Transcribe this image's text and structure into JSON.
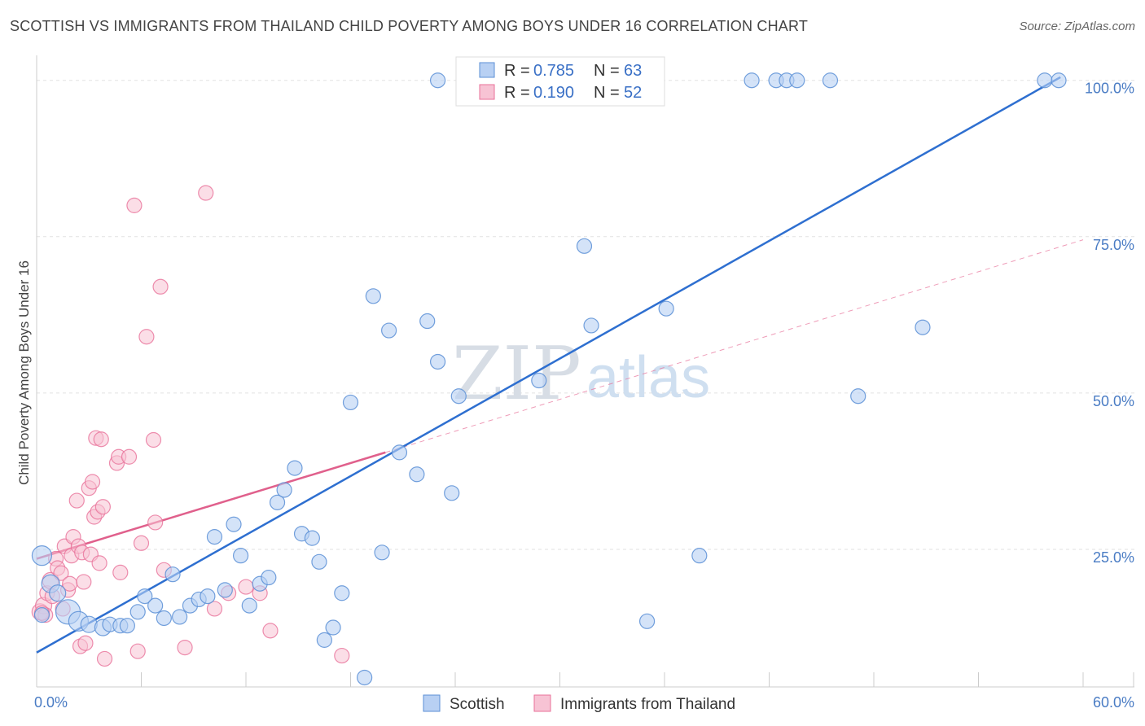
{
  "title": "SCOTTISH VS IMMIGRANTS FROM THAILAND CHILD POVERTY AMONG BOYS UNDER 16 CORRELATION CHART",
  "source": "Source: ZipAtlas.com",
  "colors": {
    "scottish": "#5b8fd6",
    "scottish_fill": "#b8d0f3",
    "thailand": "#e8729a",
    "thailand_fill": "#f7c3d4",
    "tick_text": "#4a7cc4",
    "grid": "#e2e2e2"
  },
  "chart_data": {
    "type": "scatter",
    "xlabel": "",
    "ylabel": "Child Poverty Among Boys Under 16",
    "xlim": [
      0,
      60
    ],
    "ylim": [
      3,
      104
    ],
    "x_tick_labels": [
      "0.0%",
      "60.0%"
    ],
    "y_ticks": [
      25,
      50,
      75,
      100
    ],
    "y_tick_labels": [
      "25.0%",
      "50.0%",
      "75.0%",
      "100.0%"
    ],
    "legend": {
      "position": "top-center",
      "rows": [
        {
          "r_label": "R =",
          "r": "0.785",
          "n_label": "N =",
          "n": "63"
        },
        {
          "r_label": "R =",
          "r": "0.190",
          "n_label": "N =",
          "n": "52"
        }
      ]
    },
    "series": [
      {
        "name": "Scottish",
        "trend": {
          "x": [
            0,
            58.7
          ],
          "y": [
            8.5,
            100.5
          ]
        },
        "points": [
          [
            0.3,
            24,
            12
          ],
          [
            0.8,
            19.5,
            11
          ],
          [
            1.2,
            18,
            10
          ],
          [
            1.8,
            15,
            15
          ],
          [
            2.4,
            13.5,
            12
          ],
          [
            3.0,
            13,
            10
          ],
          [
            3.8,
            12.5,
            10
          ],
          [
            4.2,
            13,
            9
          ],
          [
            4.8,
            12.8,
            9
          ],
          [
            5.2,
            12.8,
            9
          ],
          [
            5.8,
            15,
            9
          ],
          [
            6.2,
            17.5,
            9
          ],
          [
            6.8,
            16,
            9
          ],
          [
            7.3,
            14,
            9
          ],
          [
            7.8,
            21,
            9
          ],
          [
            8.2,
            14.2,
            9
          ],
          [
            8.8,
            16,
            9
          ],
          [
            9.3,
            17,
            9
          ],
          [
            9.8,
            17.5,
            9
          ],
          [
            10.2,
            27,
            9
          ],
          [
            10.8,
            18.5,
            9
          ],
          [
            11.3,
            29,
            9
          ],
          [
            11.7,
            24,
            9
          ],
          [
            12.2,
            16,
            9
          ],
          [
            12.8,
            19.5,
            9
          ],
          [
            13.3,
            20.5,
            9
          ],
          [
            13.8,
            32.5,
            9
          ],
          [
            14.2,
            34.5,
            9
          ],
          [
            14.8,
            38,
            9
          ],
          [
            15.2,
            27.5,
            9
          ],
          [
            15.8,
            26.8,
            9
          ],
          [
            16.2,
            23,
            9
          ],
          [
            16.5,
            10.5,
            9
          ],
          [
            17.0,
            12.5,
            9
          ],
          [
            17.5,
            18,
            9
          ],
          [
            18.0,
            48.5,
            9
          ],
          [
            18.8,
            4.5,
            9
          ],
          [
            19.3,
            65.5,
            9
          ],
          [
            19.8,
            24.5,
            9
          ],
          [
            20.2,
            60,
            9
          ],
          [
            20.8,
            40.5,
            9
          ],
          [
            21.8,
            37,
            9
          ],
          [
            22.4,
            61.5,
            9
          ],
          [
            23.0,
            55,
            9
          ],
          [
            23.0,
            100,
            9
          ],
          [
            23.8,
            34,
            9
          ],
          [
            24.2,
            49.5,
            9
          ],
          [
            28.8,
            52,
            9
          ],
          [
            31.4,
            73.5,
            9
          ],
          [
            31.8,
            60.8,
            9
          ],
          [
            35.0,
            13.5,
            9
          ],
          [
            36.1,
            63.5,
            9
          ],
          [
            38.0,
            24,
            9
          ],
          [
            41.0,
            100,
            9
          ],
          [
            42.4,
            100,
            9
          ],
          [
            43.0,
            100,
            9
          ],
          [
            43.6,
            100,
            9
          ],
          [
            45.5,
            100,
            9
          ],
          [
            47.1,
            49.5,
            9
          ],
          [
            50.8,
            60.5,
            9
          ],
          [
            57.8,
            100,
            9
          ],
          [
            58.6,
            100,
            9
          ],
          [
            0.3,
            14.5,
            9
          ]
        ]
      },
      {
        "name": "Immigrants from Thailand",
        "trend": {
          "x": [
            0,
            20
          ],
          "y": [
            23.5,
            40.5
          ]
        },
        "dashed_extension": {
          "x": [
            20,
            60
          ],
          "y": [
            40.5,
            74.5
          ]
        },
        "points": [
          [
            0.2,
            15,
            10
          ],
          [
            0.4,
            16,
            10
          ],
          [
            0.5,
            14.5,
            9
          ],
          [
            0.6,
            18,
            9
          ],
          [
            0.8,
            20,
            10
          ],
          [
            0.9,
            17.5,
            9
          ],
          [
            1.1,
            23.5,
            9
          ],
          [
            1.2,
            22,
            9
          ],
          [
            1.4,
            21.2,
            9
          ],
          [
            1.6,
            25.5,
            9
          ],
          [
            1.8,
            18.5,
            9
          ],
          [
            1.9,
            19.5,
            9
          ],
          [
            2.0,
            24,
            9
          ],
          [
            2.1,
            27,
            9
          ],
          [
            2.3,
            32.8,
            9
          ],
          [
            2.4,
            25.5,
            9
          ],
          [
            2.5,
            9.5,
            9
          ],
          [
            2.6,
            24.5,
            9
          ],
          [
            2.7,
            19.8,
            9
          ],
          [
            2.8,
            10,
            9
          ],
          [
            3.0,
            34.8,
            9
          ],
          [
            3.1,
            24.2,
            9
          ],
          [
            3.2,
            35.8,
            9
          ],
          [
            3.3,
            30.2,
            9
          ],
          [
            3.4,
            42.8,
            9
          ],
          [
            3.5,
            31,
            9
          ],
          [
            3.6,
            22.8,
            9
          ],
          [
            3.7,
            42.6,
            9
          ],
          [
            3.8,
            31.8,
            9
          ],
          [
            3.9,
            7.5,
            9
          ],
          [
            4.6,
            38.8,
            9
          ],
          [
            4.7,
            39.8,
            9
          ],
          [
            4.8,
            21.3,
            9
          ],
          [
            5.3,
            39.8,
            9
          ],
          [
            5.6,
            80,
            9
          ],
          [
            5.8,
            8.7,
            9
          ],
          [
            6.0,
            26,
            9
          ],
          [
            6.3,
            59,
            9
          ],
          [
            6.7,
            42.5,
            9
          ],
          [
            6.8,
            29.3,
            9
          ],
          [
            7.1,
            67,
            9
          ],
          [
            7.3,
            21.7,
            9
          ],
          [
            8.5,
            9.3,
            9
          ],
          [
            9.7,
            82,
            9
          ],
          [
            10.2,
            15.5,
            9
          ],
          [
            11.0,
            18,
            9
          ],
          [
            12.0,
            19,
            9
          ],
          [
            12.8,
            18,
            9
          ],
          [
            13.4,
            12,
            9
          ],
          [
            17.5,
            8,
            9
          ],
          [
            1.5,
            15.5,
            9
          ],
          [
            0.3,
            14.8,
            9
          ]
        ]
      }
    ],
    "bottom_legend": [
      "Scottish",
      "Immigrants from Thailand"
    ],
    "watermark": [
      "ZIP",
      "atlas"
    ]
  }
}
